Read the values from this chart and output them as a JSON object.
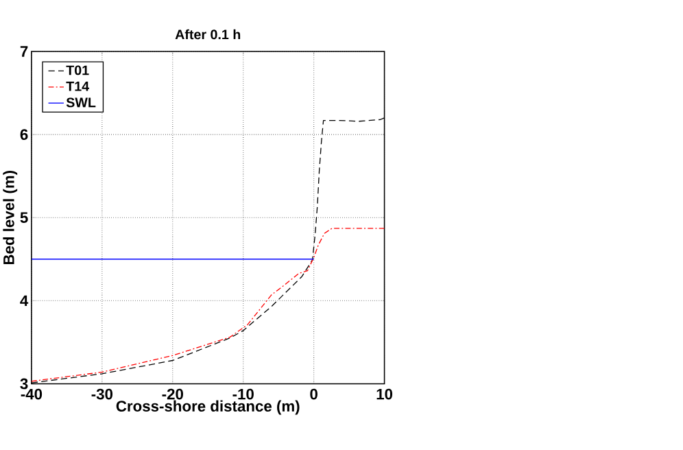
{
  "chart_data": {
    "type": "line",
    "title": "After 0.1 h",
    "xlabel": "Cross-shore distance (m)",
    "ylabel": "Bed level (m)",
    "xlim": [
      -40,
      10
    ],
    "ylim": [
      3,
      7
    ],
    "xticks": [
      -40,
      -30,
      -20,
      -10,
      0,
      10
    ],
    "yticks": [
      3,
      4,
      5,
      6,
      7
    ],
    "grid": true,
    "legend": "top left",
    "marker": "none",
    "series": [
      {
        "name": "T01",
        "color": "#000000",
        "line_style": "dashed",
        "x": [
          -40,
          -30,
          -20,
          -11.9,
          -10,
          -6,
          -1.7,
          -0.2,
          0.2,
          0.5,
          0.77,
          1.06,
          1.36,
          3.4,
          6.4,
          9.4,
          10
        ],
        "values": [
          3.01,
          3.12,
          3.28,
          3.55,
          3.64,
          3.93,
          4.29,
          4.49,
          4.81,
          5.14,
          5.56,
          5.9,
          6.17,
          6.17,
          6.16,
          6.18,
          6.2
        ]
      },
      {
        "name": "T14",
        "color": "#ff0000",
        "line_style": "dashdot",
        "x": [
          -40,
          -30,
          -20,
          -11.9,
          -9.4,
          -6,
          -4.3,
          -2.1,
          -0.9,
          0,
          0.64,
          1.5,
          2.55,
          10
        ],
        "values": [
          3.03,
          3.14,
          3.34,
          3.56,
          3.71,
          4.07,
          4.18,
          4.33,
          4.36,
          4.52,
          4.67,
          4.81,
          4.87,
          4.87
        ]
      },
      {
        "name": "SWL",
        "color": "#0000ff",
        "line_style": "solid",
        "x": [
          -40,
          0
        ],
        "values": [
          4.5,
          4.5
        ]
      }
    ]
  }
}
